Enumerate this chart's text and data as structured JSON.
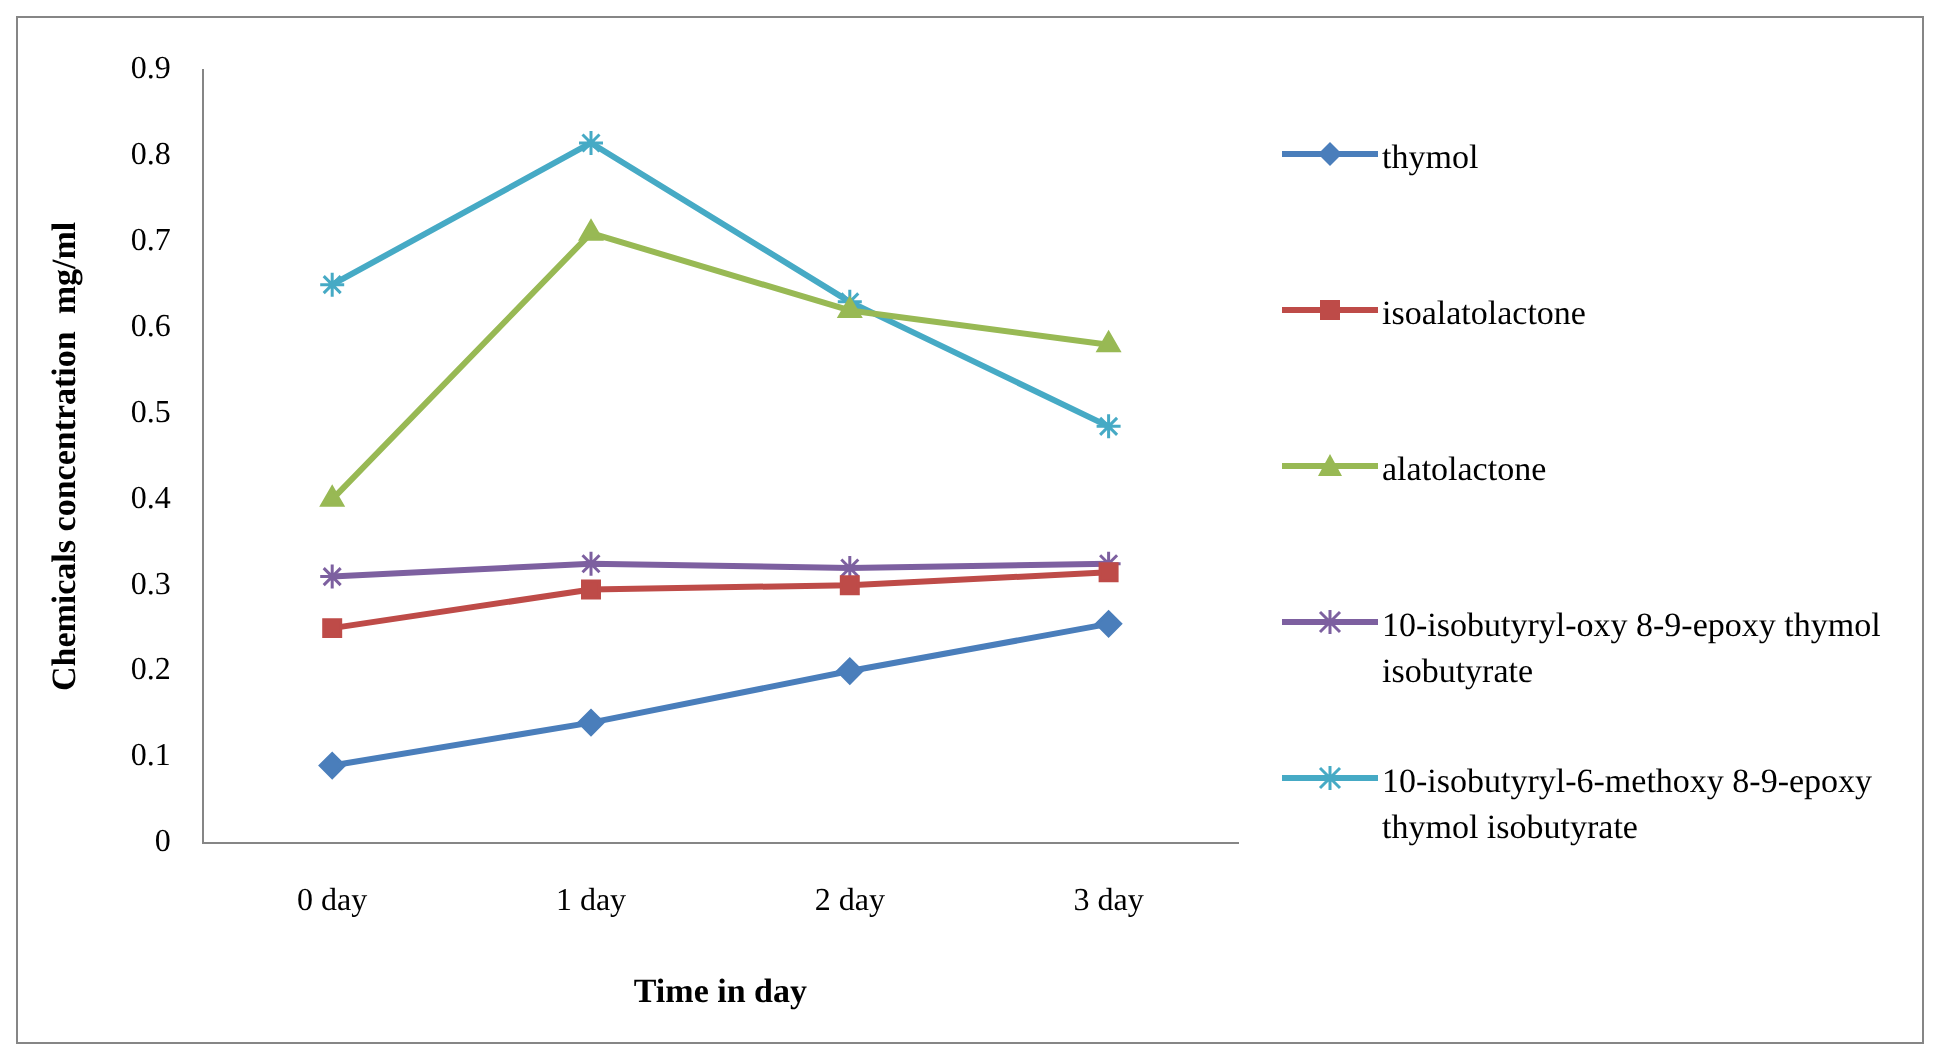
{
  "chart_data": {
    "type": "line",
    "xlabel": "Time in day",
    "ylabel": "Chemicals concentration  mg/ml",
    "categories": [
      "0 day",
      "1 day",
      "2 day",
      "3 day"
    ],
    "ylim": [
      0,
      0.9
    ],
    "yticks": [
      0,
      0.1,
      0.2,
      0.3,
      0.4,
      0.5,
      0.6,
      0.7,
      0.8,
      0.9
    ],
    "grid": false,
    "legend": "right",
    "line_style": "solid",
    "series": [
      {
        "name": "thymol",
        "color": "#4a7ebb",
        "marker": "diamond",
        "values": [
          0.09,
          0.14,
          0.2,
          0.255
        ]
      },
      {
        "name": "isoalatolactone",
        "color": "#be4b48",
        "marker": "square",
        "values": [
          0.25,
          0.295,
          0.3,
          0.315
        ]
      },
      {
        "name": "alatolactone",
        "color": "#98b954",
        "marker": "triangle",
        "values": [
          0.4,
          0.71,
          0.62,
          0.58
        ]
      },
      {
        "name": "10-isobutyryl-oxy 8-9-epoxy thymol isobutyrate",
        "color": "#7d60a0",
        "marker": "cross",
        "values": [
          0.31,
          0.325,
          0.32,
          0.325
        ]
      },
      {
        "name": "10-isobutyryl-6-methoxy 8-9-epoxy thymol isobutyrate",
        "color": "#46aac5",
        "marker": "cross",
        "values": [
          0.65,
          0.815,
          0.63,
          0.485
        ]
      }
    ]
  }
}
